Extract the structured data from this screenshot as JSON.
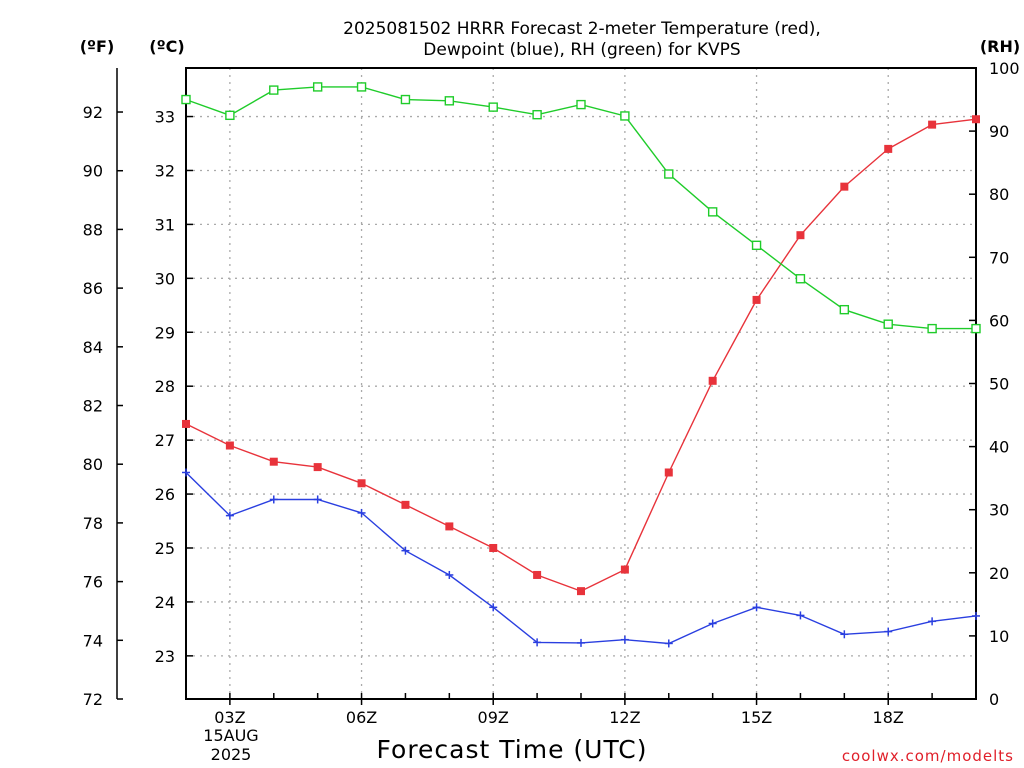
{
  "chart_data": {
    "type": "line",
    "title_line1": "2025081502 HRRR Forecast 2-meter Temperature (red),",
    "title_line2": "Dewpoint (blue), RH (green) for KVPS",
    "unit_left_f": "(ºF)",
    "unit_left_c": "(ºC)",
    "unit_right": "(RH)",
    "xlabel": "Forecast Time (UTC)",
    "credit": "coolwx.com/modelts",
    "x_date_line1": "15AUG",
    "x_date_line2": "2025",
    "x_hours": [
      2,
      3,
      4,
      5,
      6,
      7,
      8,
      9,
      10,
      11,
      12,
      13,
      14,
      15,
      16,
      17,
      18,
      19,
      20
    ],
    "x_tick_hours": [
      3,
      6,
      9,
      12,
      15,
      18
    ],
    "x_tick_labels": [
      "03Z",
      "06Z",
      "09Z",
      "12Z",
      "15Z",
      "18Z"
    ],
    "xlim": [
      2,
      20
    ],
    "ylim_f": [
      72,
      93.5
    ],
    "ylim_c": [
      22.2,
      33.9
    ],
    "ylim_rh": [
      0,
      100
    ],
    "yticks_f": [
      72,
      74,
      76,
      78,
      80,
      82,
      84,
      86,
      88,
      90,
      92
    ],
    "yticks_c": [
      23,
      24,
      25,
      26,
      27,
      28,
      29,
      30,
      31,
      32,
      33
    ],
    "yticks_rh": [
      0,
      10,
      20,
      30,
      40,
      50,
      60,
      70,
      80,
      90,
      100
    ],
    "grid": true,
    "series": [
      {
        "name": "Temperature",
        "axis": "celsius",
        "color": "#e8333b",
        "marker": "filled-square",
        "values": [
          27.3,
          26.9,
          26.6,
          26.5,
          26.2,
          25.8,
          25.4,
          25.0,
          24.5,
          24.2,
          24.6,
          26.4,
          28.1,
          29.6,
          30.8,
          31.7,
          32.4,
          32.85,
          32.95
        ]
      },
      {
        "name": "Dewpoint",
        "axis": "celsius",
        "color": "#2a3fe0",
        "marker": "plus",
        "values": [
          26.4,
          25.6,
          25.9,
          25.9,
          25.65,
          24.95,
          24.5,
          23.9,
          23.25,
          23.24,
          23.3,
          23.23,
          23.6,
          23.9,
          23.75,
          23.4,
          23.45,
          23.64,
          23.74
        ]
      },
      {
        "name": "RH",
        "axis": "rh",
        "color": "#1fcc2a",
        "marker": "open-square",
        "values": [
          95,
          92.5,
          96.5,
          97,
          97,
          95,
          94.8,
          93.8,
          92.6,
          94.2,
          92.4,
          83.2,
          77.2,
          71.9,
          66.6,
          61.7,
          59.4,
          58.7,
          58.7
        ]
      }
    ]
  }
}
